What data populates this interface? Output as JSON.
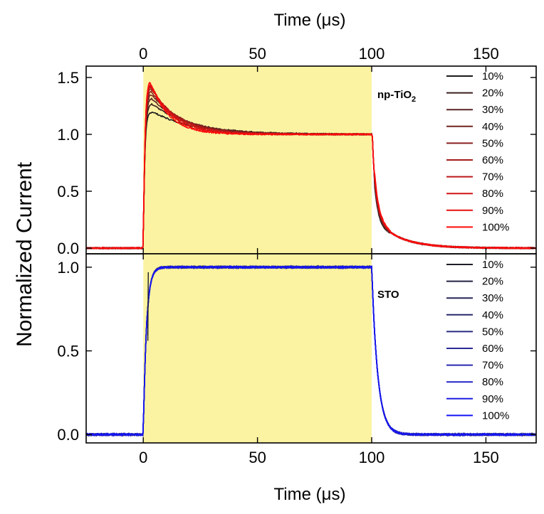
{
  "chart_data": [
    {
      "type": "line",
      "panel": "top",
      "xlabel": "Time (μs)",
      "xlabel_position": "top",
      "ylabel": "Normalized Current",
      "xlim": [
        -25,
        172
      ],
      "ylim": [
        -0.05,
        1.6
      ],
      "x_ticks": [
        0,
        50,
        100,
        150
      ],
      "x_tick_labels": [
        "0",
        "50",
        "100",
        "150"
      ],
      "y_ticks": [
        0.0,
        0.5,
        1.0,
        1.5
      ],
      "y_tick_labels": [
        "0.0",
        "0.5",
        "1.0",
        "1.5"
      ],
      "shaded_region": {
        "x_start": 0,
        "x_end": 100,
        "color": "#fbf3a1"
      },
      "annotation": {
        "text": "np-TiO",
        "subscript": "2"
      },
      "legend_position": "top-right",
      "series": [
        {
          "name": "10%",
          "color": "#1a1a1a",
          "peak": 1.2,
          "peak_time": 4,
          "decay_tau": 18
        },
        {
          "name": "20%",
          "color": "#3d1f1f",
          "peak": 1.27,
          "peak_time": 3.8,
          "decay_tau": 17
        },
        {
          "name": "30%",
          "color": "#5a2323",
          "peak": 1.32,
          "peak_time": 3.6,
          "decay_tau": 15
        },
        {
          "name": "40%",
          "color": "#722222",
          "peak": 1.36,
          "peak_time": 3.4,
          "decay_tau": 14
        },
        {
          "name": "50%",
          "color": "#8a1f1f",
          "peak": 1.39,
          "peak_time": 3.2,
          "decay_tau": 13
        },
        {
          "name": "60%",
          "color": "#a31c1c",
          "peak": 1.42,
          "peak_time": 3.1,
          "decay_tau": 12
        },
        {
          "name": "70%",
          "color": "#bd1818",
          "peak": 1.44,
          "peak_time": 3.0,
          "decay_tau": 11
        },
        {
          "name": "80%",
          "color": "#d31414",
          "peak": 1.46,
          "peak_time": 2.9,
          "decay_tau": 10
        },
        {
          "name": "90%",
          "color": "#e81010",
          "peak": 1.48,
          "peak_time": 2.8,
          "decay_tau": 9
        },
        {
          "name": "100%",
          "color": "#ff0a0a",
          "peak": 1.49,
          "peak_time": 2.7,
          "decay_tau": 8
        }
      ]
    },
    {
      "type": "line",
      "panel": "bottom",
      "xlabel": "Time (μs)",
      "xlabel_position": "bottom",
      "xlim": [
        -25,
        172
      ],
      "ylim": [
        -0.05,
        1.08
      ],
      "x_ticks": [
        0,
        50,
        100,
        150
      ],
      "x_tick_labels": [
        "0",
        "50",
        "100",
        "150"
      ],
      "y_ticks": [
        0.0,
        0.5,
        1.0
      ],
      "y_tick_labels": [
        "0.0",
        "0.5",
        "1.0"
      ],
      "shaded_region": {
        "x_start": 0,
        "x_end": 100,
        "color": "#fbf3a1"
      },
      "annotation": {
        "text": "STO"
      },
      "legend_position": "top-right",
      "series": [
        {
          "name": "10%",
          "color": "#1e1e2a"
        },
        {
          "name": "20%",
          "color": "#232340"
        },
        {
          "name": "30%",
          "color": "#262656"
        },
        {
          "name": "40%",
          "color": "#28286c"
        },
        {
          "name": "50%",
          "color": "#2a2a82"
        },
        {
          "name": "60%",
          "color": "#2a2a98"
        },
        {
          "name": "70%",
          "color": "#2828b0"
        },
        {
          "name": "80%",
          "color": "#2424c8"
        },
        {
          "name": "90%",
          "color": "#1e1ee0"
        },
        {
          "name": "100%",
          "color": "#1414f5"
        }
      ]
    }
  ]
}
